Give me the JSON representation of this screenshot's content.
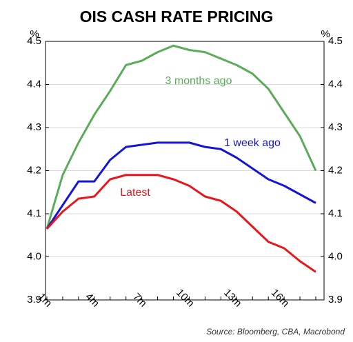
{
  "chart_data": {
    "type": "line",
    "title": "OIS CASH RATE PRICING",
    "y_unit": "%",
    "source": "Source: Bloomberg, CBA, Macrobond",
    "categories": [
      "1m",
      null,
      null,
      "4m",
      null,
      null,
      "7m",
      null,
      null,
      "10m",
      null,
      null,
      "13m",
      null,
      null,
      "16m",
      null,
      null
    ],
    "series": [
      {
        "name": "3 months ago",
        "color": "#5aac57",
        "values": [
          4.065,
          4.19,
          4.265,
          4.33,
          4.385,
          4.445,
          4.455,
          4.475,
          4.49,
          4.48,
          4.475,
          4.46,
          4.445,
          4.425,
          4.39,
          4.335,
          4.28,
          4.2
        ]
      },
      {
        "name": "1 week ago",
        "color": "#1414d8",
        "values": [
          4.065,
          4.12,
          4.175,
          4.175,
          4.225,
          4.255,
          4.26,
          4.265,
          4.265,
          4.265,
          4.255,
          4.25,
          4.23,
          4.205,
          4.18,
          4.165,
          4.145,
          4.125
        ]
      },
      {
        "name": "Latest",
        "color": "#e8161b",
        "values": [
          4.065,
          4.105,
          4.135,
          4.14,
          4.18,
          4.19,
          4.19,
          4.19,
          4.18,
          4.165,
          4.14,
          4.13,
          4.105,
          4.07,
          4.035,
          4.02,
          3.99,
          3.965
        ]
      }
    ],
    "ylim": [
      3.9,
      4.5
    ],
    "yticks": [
      3.9,
      {
        "value": 4,
        "label": "4.0"
      },
      4.1,
      4.2,
      4.3,
      4.4,
      4.5
    ],
    "grid": true
  }
}
